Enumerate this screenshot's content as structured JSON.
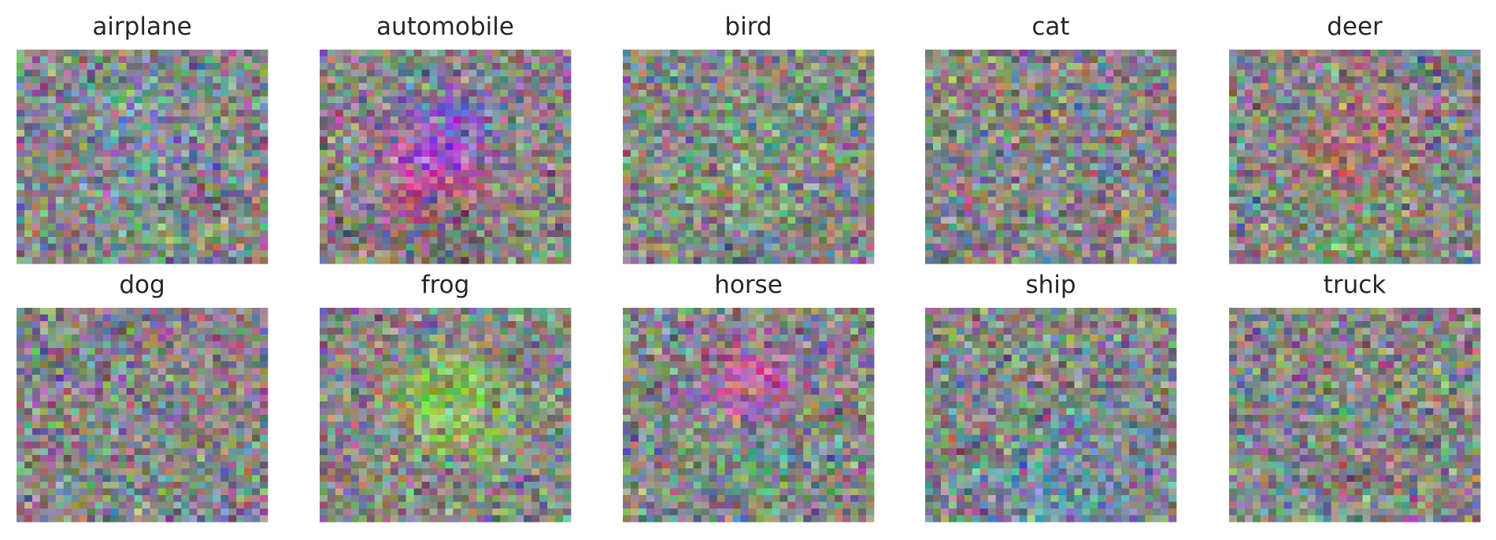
{
  "images": [
    {
      "label": "airplane"
    },
    {
      "label": "automobile"
    },
    {
      "label": "bird"
    },
    {
      "label": "cat"
    },
    {
      "label": "deer"
    },
    {
      "label": "dog"
    },
    {
      "label": "frog"
    },
    {
      "label": "horse"
    },
    {
      "label": "ship"
    },
    {
      "label": "truck"
    }
  ]
}
